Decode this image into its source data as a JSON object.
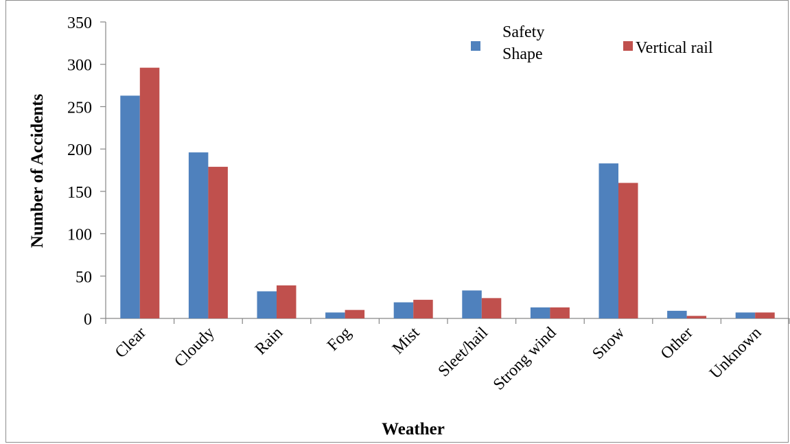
{
  "chart_data": {
    "type": "bar",
    "categories": [
      "Clear",
      "Cloudy",
      "Rain",
      "Fog",
      "Mist",
      "Sleet/hail",
      "Strong wind",
      "Snow",
      "Other",
      "Unknown"
    ],
    "series": [
      {
        "name": "Safety Shape",
        "legend_lines": [
          "Safety",
          "Shape"
        ],
        "color": "#4f81bd",
        "values": [
          263,
          196,
          32,
          7,
          19,
          33,
          13,
          183,
          9,
          7
        ]
      },
      {
        "name": "Vertical rail",
        "color": "#c0504d",
        "values": [
          296,
          179,
          39,
          10,
          22,
          24,
          13,
          160,
          3,
          7
        ]
      }
    ],
    "xlabel": "Weather",
    "ylabel": "Number of Accidents",
    "ylim": [
      0,
      350
    ],
    "yticks": [
      0,
      50,
      100,
      150,
      200,
      250,
      300,
      350
    ],
    "grid": false,
    "legend_position": "top-right"
  }
}
